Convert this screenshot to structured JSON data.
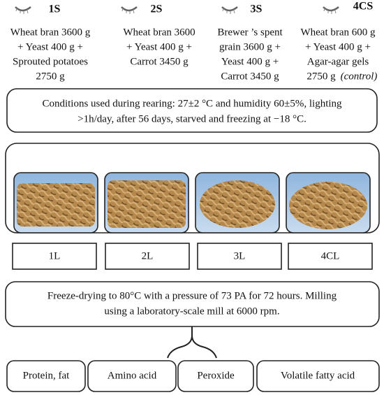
{
  "diets": [
    {
      "label": "1S",
      "lines": [
        "Wheat bran 3600 g",
        "+ Yeast 400 g +",
        "Sprouted potatoes",
        "2750 g"
      ]
    },
    {
      "label": "2S",
      "lines": [
        "Wheat bran 3600",
        "+ Yeast 400 g +",
        "Carrot 3450 g"
      ]
    },
    {
      "label": "3S",
      "lines": [
        "Brewer ’s spent",
        "grain 3600 g +",
        "Yeast 400 g +",
        "Carrot 3450 g"
      ]
    },
    {
      "label": "4CS",
      "lines": [
        "Wheat bran 600 g",
        "+ Yeast 400 g +",
        "Agar-agar gels",
        "2750 g"
      ],
      "note": "(control)"
    }
  ],
  "conditions": [
    "Conditions used during rearing: 27±2 °C and humidity 60±5%, lighting",
    ">1h/day, after 56 days, starved and freezing at −18 °C."
  ],
  "samples": [
    "1L",
    "2L",
    "3L",
    "4CL"
  ],
  "process": [
    "Freeze-drying to 80°C with a pressure of 73 PA for 72 hours. Milling",
    "using a laboratory-scale mill at 6000 rpm."
  ],
  "analyses": [
    "Protein, fat",
    "Amino acid",
    "Peroxide",
    "Volatile fatty acid"
  ]
}
